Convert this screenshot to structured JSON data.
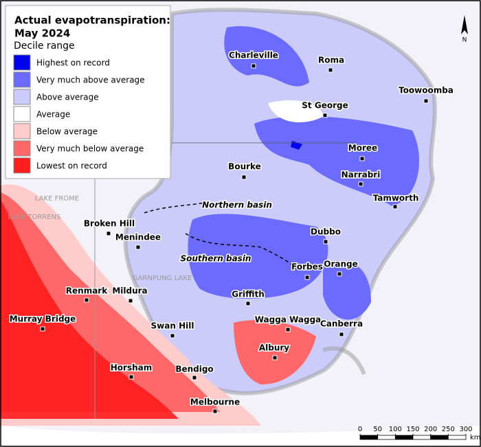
{
  "legend": {
    "title_lines": [
      "Actual evapotranspiration:",
      "May 2024"
    ],
    "subtitle": "Decile range",
    "items": [
      {
        "label": "Highest on record",
        "color": "#0000f0"
      },
      {
        "label": "Very much above average",
        "color": "#6b6bff"
      },
      {
        "label": "Above average",
        "color": "#ccccfa"
      },
      {
        "label": "Average",
        "color": "#ffffff"
      },
      {
        "label": "Below average",
        "color": "#ffcccc"
      },
      {
        "label": "Very much below average",
        "color": "#ff6868"
      },
      {
        "label": "Lowest on record",
        "color": "#ff1c1c"
      }
    ]
  },
  "places": [
    "Charleville",
    "Roma",
    "Toowoomba",
    "St George",
    "Moree",
    "Narrabri",
    "Bourke",
    "Tamworth",
    "Broken Hill",
    "Menindee",
    "Dubbo",
    "Orange",
    "Forbes",
    "Griffith",
    "Renmark",
    "Mildura",
    "Swan Hill",
    "Wagga Wagga",
    "Canberra",
    "Murray Bridge",
    "Albury",
    "Horsham",
    "Bendigo",
    "Melbourne"
  ],
  "regions": [
    "Northern basin",
    "Southern basin"
  ],
  "lakes": [
    "LAKE FROME",
    "LAKE TORRENS",
    "GARNPUNG LAKE"
  ],
  "north": "N",
  "scale": {
    "ticks": [
      0,
      50,
      100,
      150,
      200,
      250,
      300
    ],
    "unit": "km"
  }
}
